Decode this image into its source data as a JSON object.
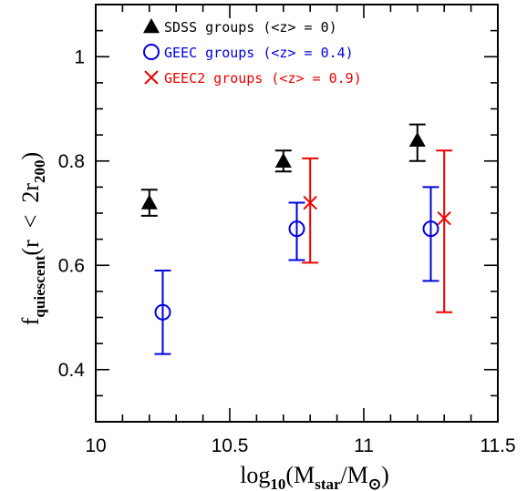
{
  "chart_data": {
    "type": "scatter",
    "xlim": [
      10,
      11.5
    ],
    "ylim": [
      0.3,
      1.1
    ],
    "x_major_ticks": [
      10,
      10.5,
      11,
      11.5
    ],
    "x_tick_labels": [
      "10",
      "10.5",
      "11",
      "11.5"
    ],
    "x_minor_step": 0.1,
    "y_major_ticks": [
      0.4,
      0.6,
      0.8,
      1.0
    ],
    "y_tick_labels": [
      "0.4",
      "0.6",
      "0.8",
      "1"
    ],
    "y_minor_step": 0.05,
    "xlabel": {
      "prefix": "log",
      "prefix_sub": "10",
      "open": "(M",
      "sub1": "star",
      "mid": "/M",
      "sub2": "⊙",
      "close": ")"
    },
    "ylabel": {
      "f": "f",
      "f_sub": "quiescent",
      "open": "(r  <  2r",
      "r_sub": "200",
      "close": ")"
    },
    "grid": false,
    "legend_position": "top-left",
    "series": [
      {
        "name": "SDSS groups (<z> = 0)",
        "marker": "triangle",
        "color": "#000000",
        "points": [
          {
            "x": 10.2,
            "y": 0.72,
            "ylow": 0.695,
            "yhigh": 0.745
          },
          {
            "x": 10.7,
            "y": 0.8,
            "ylow": 0.78,
            "yhigh": 0.82
          },
          {
            "x": 11.2,
            "y": 0.84,
            "ylow": 0.8,
            "yhigh": 0.87
          }
        ]
      },
      {
        "name": "GEEC groups (<z> = 0.4)",
        "marker": "circle",
        "color": "#0000dd",
        "points": [
          {
            "x": 10.25,
            "y": 0.51,
            "ylow": 0.43,
            "yhigh": 0.59
          },
          {
            "x": 10.75,
            "y": 0.67,
            "ylow": 0.61,
            "yhigh": 0.72
          },
          {
            "x": 11.25,
            "y": 0.67,
            "ylow": 0.57,
            "yhigh": 0.75
          }
        ]
      },
      {
        "name": "GEEC2 groups (<z> = 0.9)",
        "marker": "cross",
        "color": "#ee0000",
        "points": [
          {
            "x": 10.8,
            "y": 0.72,
            "ylow": 0.605,
            "yhigh": 0.805
          },
          {
            "x": 11.3,
            "y": 0.69,
            "ylow": 0.51,
            "yhigh": 0.82
          }
        ]
      }
    ]
  }
}
